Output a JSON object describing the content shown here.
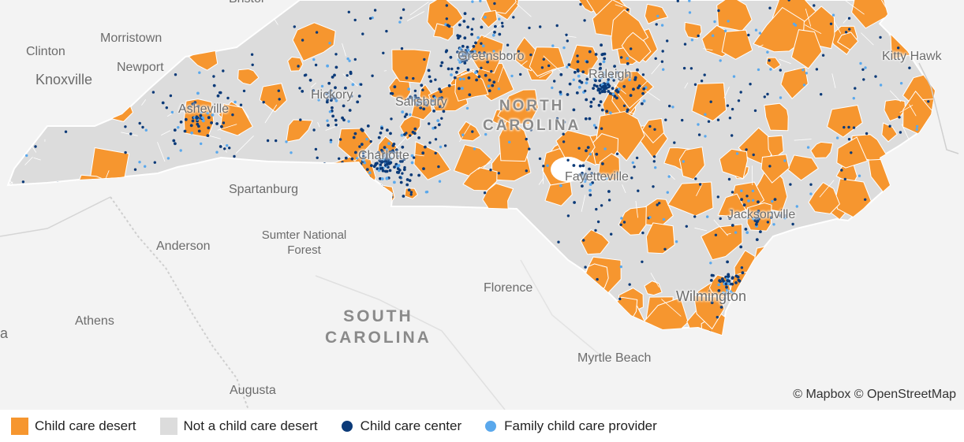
{
  "map": {
    "colors": {
      "desert": "#f6962f",
      "not_desert": "#dcdcdc",
      "center": "#0b3a78",
      "family": "#5aa8ec",
      "background": "#f3f3f3"
    },
    "places": {
      "bristol": "Bristol",
      "morristown": "Morristown",
      "clinton": "Clinton",
      "newport": "Newport",
      "knoxville": "Knoxville",
      "asheville": "Asheville",
      "hickory": "Hickory",
      "salisbury": "Salisbury",
      "greensboro": "Greensboro",
      "raleigh": "Raleigh",
      "kitty_hawk": "Kitty Hawk",
      "charlotte": "Charlotte",
      "fayetteville": "Fayetteville",
      "spartanburg": "Spartanburg",
      "sumter": "Sumter National Forest",
      "anderson": "Anderson",
      "florence": "Florence",
      "jacksonville": "Jacksonville",
      "wilmington": "Wilmington",
      "athens": "Athens",
      "myrtle_beach": "Myrtle Beach",
      "augusta": "Augusta",
      "edge_a": "a"
    },
    "states": {
      "nc_line1": "NORTH",
      "nc_line2": "CAROLINA",
      "sc_line1": "SOUTH",
      "sc_line2": "CAROLINA"
    },
    "attribution": "© Mapbox © OpenStreetMap"
  },
  "legend": {
    "items": [
      {
        "label": "Child care desert",
        "color": "#f6962f"
      },
      {
        "label": "Not a child care desert",
        "color": "#dcdcdc"
      },
      {
        "label": "Child care center",
        "color": "#0b3a78"
      },
      {
        "label": "Family child care provider",
        "color": "#5aa8ec"
      }
    ]
  }
}
